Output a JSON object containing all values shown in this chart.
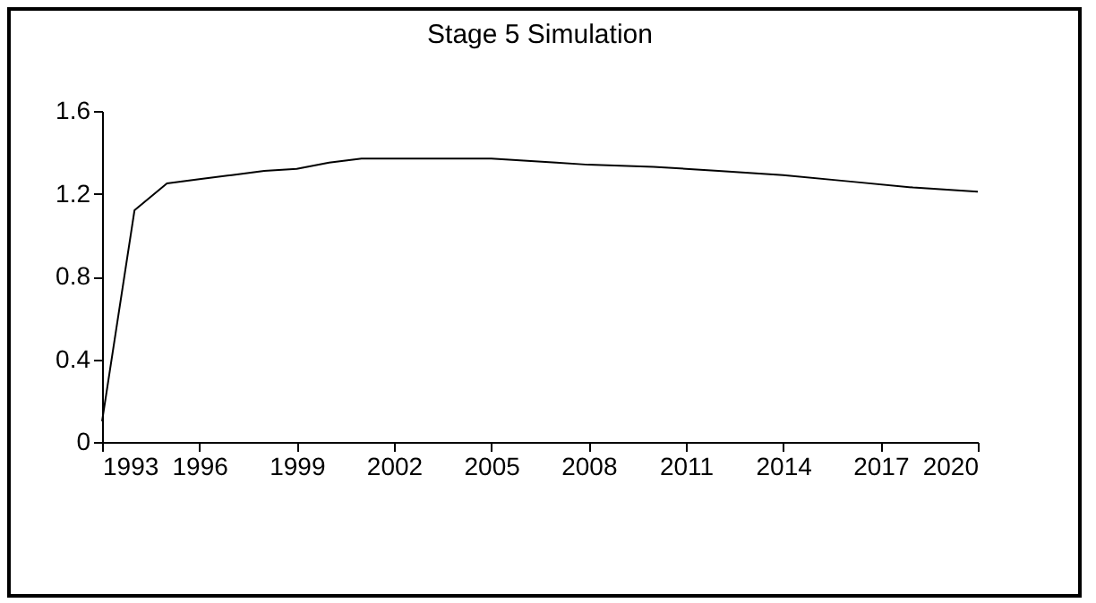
{
  "chart_data": {
    "type": "line",
    "title": "Stage 5 Simulation",
    "x": [
      1993,
      1994,
      1995,
      1996,
      1997,
      1998,
      1999,
      2000,
      2001,
      2002,
      2003,
      2004,
      2005,
      2006,
      2007,
      2008,
      2010,
      2012,
      2014,
      2016,
      2018,
      2020
    ],
    "series": [
      {
        "color": "#000000",
        "values": [
          0.1,
          1.12,
          1.25,
          1.27,
          1.29,
          1.31,
          1.32,
          1.35,
          1.37,
          1.37,
          1.37,
          1.37,
          1.37,
          1.36,
          1.35,
          1.34,
          1.33,
          1.31,
          1.29,
          1.26,
          1.23,
          1.21
        ]
      }
    ],
    "xlim": [
      1993,
      2020
    ],
    "xticks": [
      1993,
      1996,
      1999,
      2002,
      2005,
      2008,
      2011,
      2014,
      2017,
      2020
    ],
    "ylim": [
      0,
      1.6
    ],
    "yticks": [
      0,
      0.4,
      0.8,
      1.2,
      1.6
    ],
    "grid": false,
    "legend": false
  }
}
